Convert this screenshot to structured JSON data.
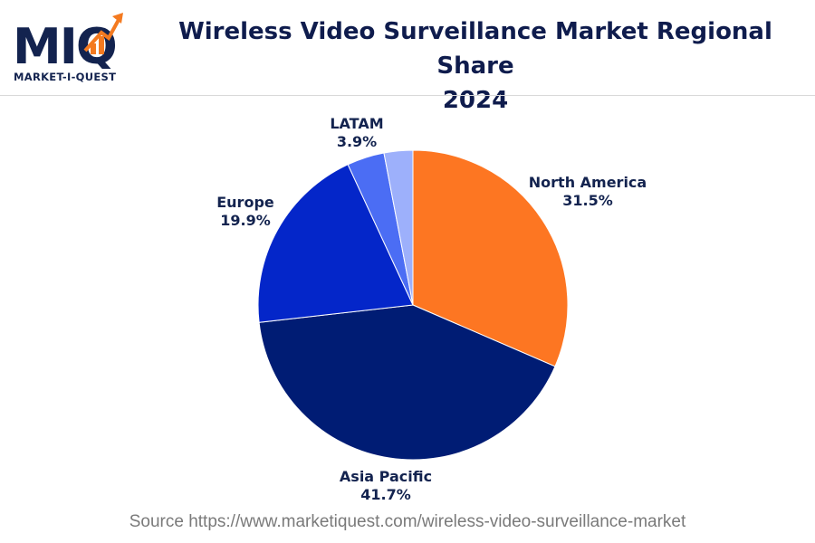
{
  "header": {
    "logo_text": "MIQ",
    "logo_subtext": "MARKET-I-QUEST",
    "title_line1": "Wireless Video Surveillance Market Regional Share",
    "title_line2": "2024"
  },
  "footer": {
    "source": "Source https://www.marketiquest.com/wireless-video-surveillance-market"
  },
  "colors": {
    "brand_navy": "#13234f",
    "brand_orange": "#f47a20"
  },
  "chart_data": {
    "type": "pie",
    "title": "Wireless Video Surveillance Market Regional Share 2024",
    "slices": [
      {
        "label": "North America",
        "value": 31.5,
        "display": "31.5%",
        "color": "#fd7622"
      },
      {
        "label": "Asia Pacific",
        "value": 41.7,
        "display": "41.7%",
        "color": "#001c74"
      },
      {
        "label": "Europe",
        "value": 19.9,
        "display": "19.9%",
        "color": "#0426c9"
      },
      {
        "label": "LATAM",
        "value": 3.9,
        "display": "3.9%",
        "color": "#4b6df4"
      },
      {
        "label": "",
        "value": 3.0,
        "display": "",
        "color": "#9db0fb"
      }
    ]
  }
}
